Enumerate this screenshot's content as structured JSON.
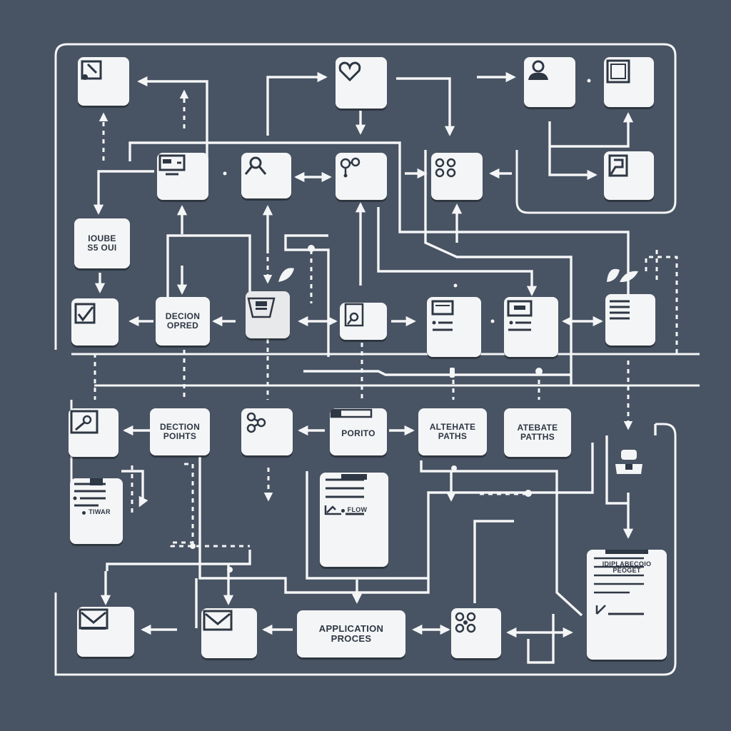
{
  "diagram": {
    "background": "#485363",
    "node_fill": "#f4f5f6",
    "line_color": "#f4f5f6",
    "ink_color": "#2e3744"
  },
  "labels": {
    "house_stoui": [
      "IOUBE",
      "S5 OUI"
    ],
    "decision_opred": [
      "DECION",
      "OPRED"
    ],
    "decision_points": [
      "DECTION",
      "POIHTS"
    ],
    "portio": "PORITO",
    "alternate_paths_1": [
      "ALTEHATE",
      "PATHS"
    ],
    "alternate_paths_2": [
      "ATEBATE",
      "PATTHS"
    ],
    "clipboard_tiwaer": "TIWAR",
    "flow_doc": "FLOW",
    "application_process": [
      "APPLICATION",
      "PROCES"
    ],
    "application_doc": [
      "IDIPLABECOIO",
      "PEOGET"
    ]
  }
}
